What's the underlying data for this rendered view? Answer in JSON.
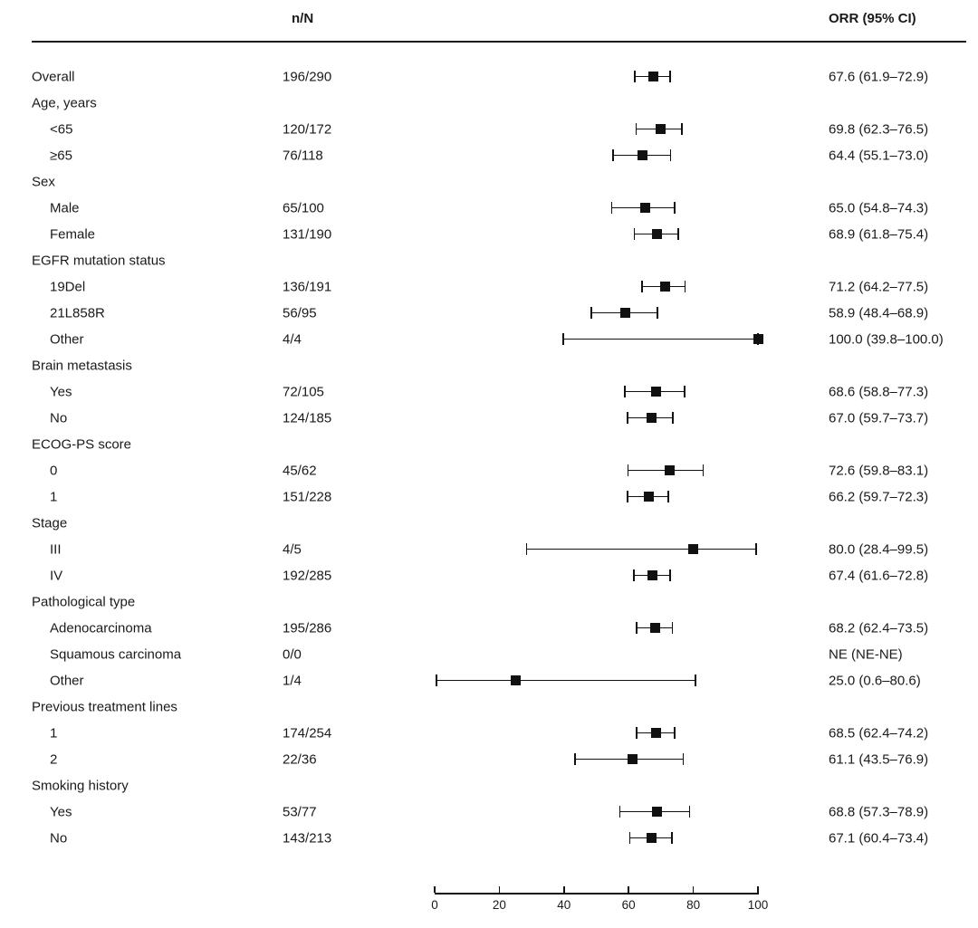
{
  "figure": {
    "background": "#ffffff",
    "text_color": "#1a1a1a",
    "marker_color": "#111111"
  },
  "chart_data": {
    "type": "forest",
    "title": "",
    "columns": {
      "n_N": "n/N",
      "orr": "ORR (95% CI)"
    },
    "x_axis": {
      "min": 0,
      "max": 100,
      "ticks": [
        0,
        20,
        40,
        60,
        80,
        100
      ]
    },
    "rows": [
      {
        "label": "Overall",
        "indent": 0,
        "n_N": "196/290",
        "orr": "67.6 (61.9–72.9)",
        "est": 67.6,
        "lo": 61.9,
        "hi": 72.9
      },
      {
        "label": "Age, years",
        "indent": 0,
        "group": true
      },
      {
        "label": "<65",
        "indent": 1,
        "n_N": "120/172",
        "orr": "69.8 (62.3–76.5)",
        "est": 69.8,
        "lo": 62.3,
        "hi": 76.5
      },
      {
        "label": "≥65",
        "indent": 1,
        "n_N": "76/118",
        "orr": "64.4 (55.1–73.0)",
        "est": 64.4,
        "lo": 55.1,
        "hi": 73.0
      },
      {
        "label": "Sex",
        "indent": 0,
        "group": true
      },
      {
        "label": "Male",
        "indent": 1,
        "n_N": "65/100",
        "orr": "65.0 (54.8–74.3)",
        "est": 65.0,
        "lo": 54.8,
        "hi": 74.3
      },
      {
        "label": "Female",
        "indent": 1,
        "n_N": "131/190",
        "orr": "68.9 (61.8–75.4)",
        "est": 68.9,
        "lo": 61.8,
        "hi": 75.4
      },
      {
        "label": "EGFR mutation status",
        "indent": 0,
        "group": true
      },
      {
        "label": "19Del",
        "indent": 1,
        "n_N": "136/191",
        "orr": "71.2 (64.2–77.5)",
        "est": 71.2,
        "lo": 64.2,
        "hi": 77.5
      },
      {
        "label": "21L858R",
        "indent": 1,
        "n_N": "56/95",
        "orr": "58.9 (48.4–68.9)",
        "est": 58.9,
        "lo": 48.4,
        "hi": 68.9
      },
      {
        "label": "Other",
        "indent": 1,
        "n_N": "4/4",
        "orr": "100.0 (39.8–100.0)",
        "est": 100.0,
        "lo": 39.8,
        "hi": 100.0
      },
      {
        "label": "Brain metastasis",
        "indent": 0,
        "group": true
      },
      {
        "label": "Yes",
        "indent": 1,
        "n_N": "72/105",
        "orr": "68.6 (58.8–77.3)",
        "est": 68.6,
        "lo": 58.8,
        "hi": 77.3
      },
      {
        "label": "No",
        "indent": 1,
        "n_N": "124/185",
        "orr": "67.0 (59.7–73.7)",
        "est": 67.0,
        "lo": 59.7,
        "hi": 73.7
      },
      {
        "label": "ECOG-PS score",
        "indent": 0,
        "group": true
      },
      {
        "label": "0",
        "indent": 1,
        "n_N": "45/62",
        "orr": "72.6 (59.8–83.1)",
        "est": 72.6,
        "lo": 59.8,
        "hi": 83.1
      },
      {
        "label": "1",
        "indent": 1,
        "n_N": "151/228",
        "orr": "66.2 (59.7–72.3)",
        "est": 66.2,
        "lo": 59.7,
        "hi": 72.3
      },
      {
        "label": "Stage",
        "indent": 0,
        "group": true
      },
      {
        "label": "III",
        "indent": 1,
        "n_N": "4/5",
        "orr": "80.0 (28.4–99.5)",
        "est": 80.0,
        "lo": 28.4,
        "hi": 99.5
      },
      {
        "label": "IV",
        "indent": 1,
        "n_N": "192/285",
        "orr": "67.4 (61.6–72.8)",
        "est": 67.4,
        "lo": 61.6,
        "hi": 72.8
      },
      {
        "label": "Pathological type",
        "indent": 0,
        "group": true
      },
      {
        "label": "Adenocarcinoma",
        "indent": 1,
        "n_N": "195/286",
        "orr": "68.2 (62.4–73.5)",
        "est": 68.2,
        "lo": 62.4,
        "hi": 73.5
      },
      {
        "label": "Squamous carcinoma",
        "indent": 1,
        "n_N": "0/0",
        "orr": "NE (NE-NE)"
      },
      {
        "label": "Other",
        "indent": 1,
        "n_N": "1/4",
        "orr": "25.0 (0.6–80.6)",
        "est": 25.0,
        "lo": 0.6,
        "hi": 80.6
      },
      {
        "label": "Previous treatment lines",
        "indent": 0,
        "group": true
      },
      {
        "label": "1",
        "indent": 1,
        "n_N": "174/254",
        "orr": "68.5 (62.4–74.2)",
        "est": 68.5,
        "lo": 62.4,
        "hi": 74.2
      },
      {
        "label": "2",
        "indent": 1,
        "n_N": "22/36",
        "orr": "61.1 (43.5–76.9)",
        "est": 61.1,
        "lo": 43.5,
        "hi": 76.9
      },
      {
        "label": "Smoking history",
        "indent": 0,
        "group": true
      },
      {
        "label": "Yes",
        "indent": 1,
        "n_N": "53/77",
        "orr": "68.8 (57.3–78.9)",
        "est": 68.8,
        "lo": 57.3,
        "hi": 78.9
      },
      {
        "label": "No",
        "indent": 1,
        "n_N": "143/213",
        "orr": "67.1 (60.4–73.4)",
        "est": 67.1,
        "lo": 60.4,
        "hi": 73.4
      }
    ]
  }
}
